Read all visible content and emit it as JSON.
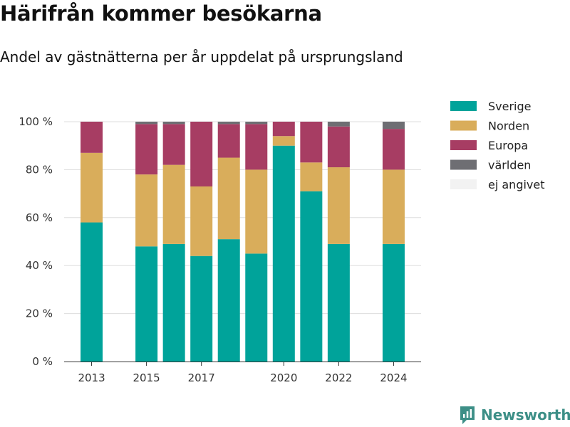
{
  "title": "Härifrån kommer besökarna",
  "subtitle": "Andel av gästnätterna per år uppdelat på ursprungsland",
  "brand": {
    "name": "Newsworthy",
    "icon": "newsworthy-logo-icon",
    "color": "#3d8f87"
  },
  "chart_data": {
    "type": "bar",
    "stacked": true,
    "x": [
      2013,
      2015,
      2016,
      2017,
      2018,
      2019,
      2020,
      2021,
      2022,
      2024
    ],
    "x_tick_labels": [
      "2013",
      "2015",
      "2017",
      "2020",
      "2022",
      "2024"
    ],
    "x_tick_values": [
      2013,
      2015,
      2017,
      2020,
      2022,
      2024
    ],
    "xlim": [
      2012,
      2025
    ],
    "ylim": [
      0,
      100
    ],
    "y_ticks": [
      0,
      20,
      40,
      60,
      80,
      100
    ],
    "y_tick_labels": [
      "0 %",
      "20 %",
      "40 %",
      "60 %",
      "80 %",
      "100 %"
    ],
    "grid": true,
    "legend_position": "top-right",
    "series": [
      {
        "name": "Sverige",
        "color": "#00a39a",
        "values": [
          58,
          48,
          49,
          44,
          51,
          45,
          90,
          71,
          49,
          49
        ]
      },
      {
        "name": "Norden",
        "color": "#d9ad5b",
        "values": [
          29,
          30,
          33,
          29,
          34,
          35,
          4,
          12,
          32,
          31
        ]
      },
      {
        "name": "Europa",
        "color": "#a73d63",
        "values": [
          13,
          21,
          17,
          27,
          14,
          19,
          6,
          17,
          17,
          17
        ]
      },
      {
        "name": "världen",
        "color": "#6e6e73",
        "values": [
          0,
          1,
          1,
          0,
          1,
          1,
          0,
          0,
          2,
          3
        ]
      },
      {
        "name": "ej angivet",
        "color": "#f2f2f2",
        "values": [
          0,
          0,
          0,
          0,
          0,
          0,
          0,
          0,
          0,
          0
        ]
      }
    ]
  }
}
